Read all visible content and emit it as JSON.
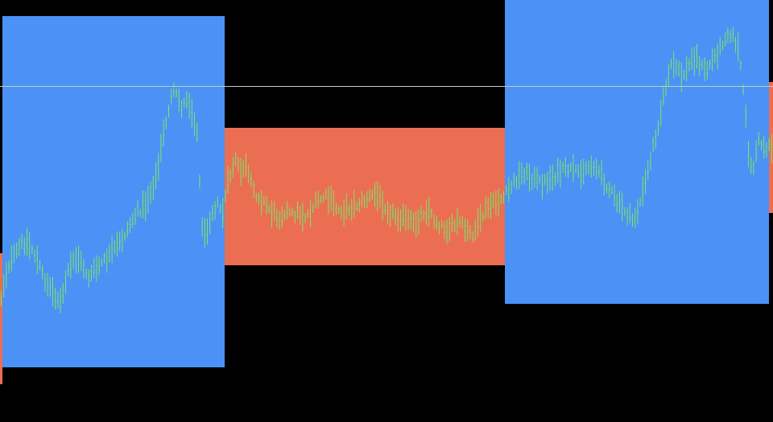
{
  "colors": {
    "background": "#000000",
    "up_zone": "#4a92f5",
    "down_zone": "#ec6e52",
    "price_bars": "#7ee46a",
    "reference_line": "#c8c8c8"
  },
  "chart_data": {
    "type": "bar",
    "style": "ohlc-price-bars-with-trend-zones",
    "title": "",
    "xlabel": "",
    "ylabel": "",
    "axes_visible": false,
    "grid": false,
    "legend": "none",
    "ylim": [
      0,
      525
    ],
    "y_axis_direction": "down",
    "bar_range_ylim": [
      0,
      525
    ],
    "horizontal_reference_line": {
      "y": 107
    },
    "zones": [
      {
        "kind": "down",
        "x_start": -5,
        "x_end": 3,
        "y_high": 315,
        "y_low": 478
      },
      {
        "kind": "up",
        "x_start": 3,
        "x_end": 279,
        "y_high": 20,
        "y_low": 457
      },
      {
        "kind": "down",
        "x_start": 279,
        "x_end": 627,
        "y_high": 159,
        "y_low": 330
      },
      {
        "kind": "up",
        "x_start": 627,
        "x_end": 955,
        "y_high": 0,
        "y_low": 378
      },
      {
        "kind": "down",
        "x_start": 955,
        "x_end": 960,
        "y_high": 102,
        "y_low": 265
      }
    ],
    "price_path": {
      "x": [
        0,
        5,
        10,
        18,
        25,
        32,
        40,
        48,
        55,
        62,
        70,
        76,
        82,
        90,
        96,
        102,
        110,
        118,
        126,
        134,
        142,
        150,
        158,
        166,
        172,
        180,
        188,
        195,
        202,
        208,
        214,
        220,
        226,
        232,
        238,
        244,
        248,
        252,
        258,
        264,
        270,
        276,
        282,
        288,
        292,
        298,
        304,
        310,
        316,
        322,
        330,
        338,
        346,
        354,
        362,
        370,
        378,
        386,
        394,
        402,
        410,
        418,
        426,
        434,
        442,
        450,
        458,
        466,
        474,
        482,
        490,
        498,
        506,
        514,
        522,
        530,
        538,
        546,
        554,
        562,
        570,
        578,
        586,
        594,
        602,
        610,
        618,
        626,
        634,
        642,
        650,
        658,
        666,
        674,
        682,
        690,
        698,
        706,
        714,
        722,
        730,
        738,
        744,
        750,
        756,
        762,
        768,
        774,
        780,
        786,
        792,
        798,
        804,
        810,
        816,
        822,
        828,
        834,
        840,
        846,
        852,
        858,
        864,
        870,
        876,
        882,
        888,
        894,
        900,
        906,
        912,
        918,
        922,
        926,
        930,
        934,
        938,
        942,
        946,
        950,
        956,
        960
      ],
      "y": [
        375,
        350,
        330,
        318,
        305,
        300,
        310,
        330,
        348,
        358,
        370,
        378,
        345,
        325,
        320,
        330,
        345,
        335,
        328,
        320,
        310,
        300,
        285,
        270,
        262,
        255,
        235,
        215,
        170,
        140,
        115,
        120,
        135,
        120,
        140,
        160,
        240,
        300,
        280,
        260,
        255,
        265,
        230,
        210,
        200,
        215,
        205,
        225,
        240,
        245,
        255,
        265,
        270,
        262,
        268,
        264,
        270,
        262,
        250,
        245,
        250,
        260,
        262,
        258,
        255,
        250,
        246,
        242,
        250,
        262,
        268,
        270,
        275,
        280,
        268,
        260,
        272,
        280,
        285,
        282,
        276,
        288,
        292,
        280,
        262,
        255,
        250,
        245,
        232,
        222,
        214,
        220,
        225,
        228,
        222,
        218,
        213,
        210,
        215,
        212,
        208,
        205,
        215,
        225,
        235,
        245,
        255,
        260,
        268,
        275,
        260,
        240,
        215,
        185,
        160,
        130,
        100,
        80,
        85,
        95,
        88,
        75,
        70,
        82,
        90,
        78,
        70,
        60,
        45,
        40,
        50,
        65,
        110,
        150,
        200,
        215,
        190,
        175,
        180,
        185,
        178,
        190
      ]
    },
    "bar_count": 300,
    "bar_spacing": 3.2
  }
}
